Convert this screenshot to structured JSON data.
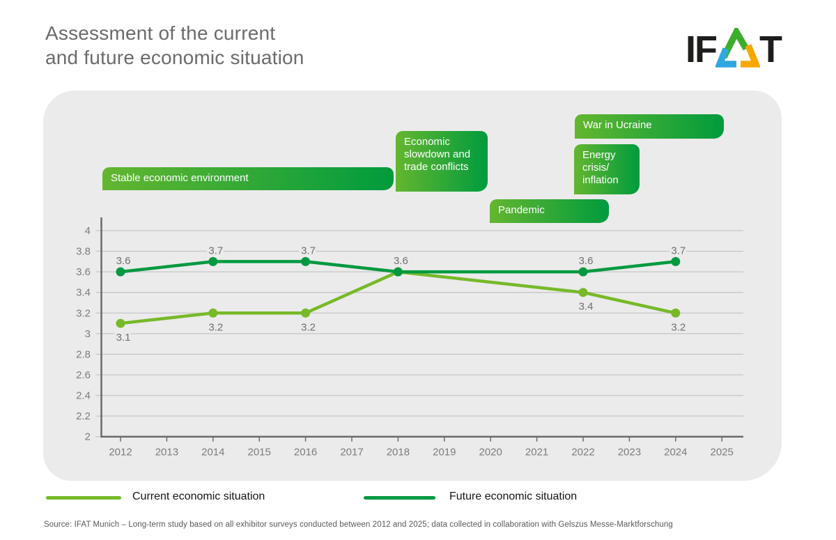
{
  "header": {
    "title_line1": "Assessment of the current",
    "title_line2": "and future economic situation",
    "logo": {
      "left_letters": "IF",
      "right_letter": "T"
    }
  },
  "colors": {
    "panel": "#EBEBEB",
    "grid": "#C6C6C6",
    "axis": "#6A6A6A",
    "tick_text": "#7C7C7C",
    "data_label_text": "#6F6F6F",
    "title_text": "#6B6B6B",
    "box_gradient_left": "#64B62F",
    "box_gradient_right": "#009B3E",
    "logo_green": "#3DAE2B",
    "logo_blue": "#2FA8E0",
    "logo_orange": "#F6A800"
  },
  "chart_data": {
    "type": "line",
    "title": "Assessment of the current and future economic situation",
    "x_ticks": [
      2012,
      2013,
      2014,
      2015,
      2016,
      2017,
      2018,
      2019,
      2020,
      2021,
      2022,
      2023,
      2024,
      2025
    ],
    "ylim": [
      2,
      4
    ],
    "y_step": 0.2,
    "grid": true,
    "legend_position": "bottom",
    "annotations": [
      {
        "label": "Stable economic environment"
      },
      {
        "label": "Economic slowdown and trade conflicts"
      },
      {
        "label": "Pandemic"
      },
      {
        "label": "War in Ucraine"
      },
      {
        "label": "Energy crisis/ inflation"
      }
    ],
    "series": [
      {
        "name": "Current economic situation",
        "color": "#77B929",
        "x": [
          2012,
          2014,
          2016,
          2018,
          2022,
          2024
        ],
        "values": [
          3.1,
          3.2,
          3.2,
          3.6,
          3.4,
          3.2
        ],
        "label_positions": [
          "below",
          "below",
          "below",
          "none",
          "below",
          "below"
        ]
      },
      {
        "name": "Future economic situation",
        "color": "#009A40",
        "x": [
          2012,
          2014,
          2016,
          2018,
          2022,
          2024
        ],
        "values": [
          3.6,
          3.7,
          3.7,
          3.6,
          3.6,
          3.7
        ],
        "label_positions": [
          "above",
          "above",
          "above",
          "above",
          "above",
          "above"
        ]
      }
    ]
  },
  "source": "Source: IFAT Munich – Long-term study based on all exhibitor surveys conducted between 2012 and 2025; data collected in collaboration with Gelszus Messe-Marktforschung"
}
